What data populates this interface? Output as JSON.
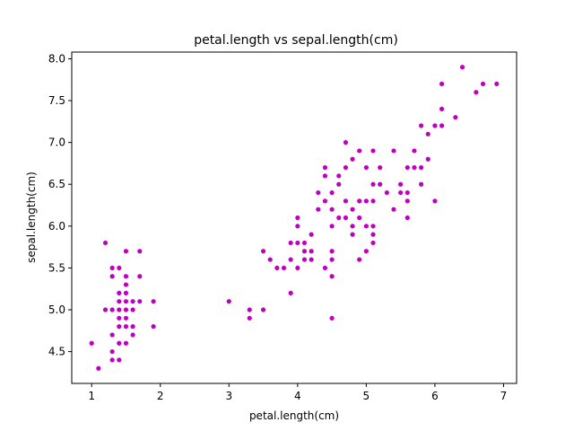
{
  "chart_data": {
    "type": "scatter",
    "title": "petal.length vs sepal.length(cm)",
    "xlabel": "petal.length(cm)",
    "ylabel": "sepal.length(cm)",
    "xlim": [
      0.71,
      7.19
    ],
    "ylim": [
      4.12,
      8.08
    ],
    "xticks": [
      1,
      2,
      3,
      4,
      5,
      6,
      7
    ],
    "xtick_labels": [
      "1",
      "2",
      "3",
      "4",
      "5",
      "6",
      "7"
    ],
    "yticks": [
      4.5,
      5.0,
      5.5,
      6.0,
      6.5,
      7.0,
      7.5,
      8.0
    ],
    "ytick_labels": [
      "4.5",
      "5.0",
      "5.5",
      "6.0",
      "6.5",
      "7.0",
      "7.5",
      "8.0"
    ],
    "grid": false,
    "marker_color": "#bf00bf",
    "series": [
      {
        "points": [
          [
            1.0,
            4.6
          ],
          [
            1.1,
            4.3
          ],
          [
            1.2,
            5.8
          ],
          [
            1.2,
            5.0
          ],
          [
            1.3,
            5.5
          ],
          [
            1.3,
            5.4
          ],
          [
            1.3,
            5.0
          ],
          [
            1.3,
            4.7
          ],
          [
            1.3,
            4.5
          ],
          [
            1.3,
            4.4
          ],
          [
            1.4,
            5.5
          ],
          [
            1.4,
            5.2
          ],
          [
            1.4,
            5.1
          ],
          [
            1.4,
            5.0
          ],
          [
            1.4,
            4.9
          ],
          [
            1.4,
            4.8
          ],
          [
            1.4,
            4.6
          ],
          [
            1.4,
            4.4
          ],
          [
            1.5,
            5.7
          ],
          [
            1.5,
            5.4
          ],
          [
            1.5,
            5.3
          ],
          [
            1.5,
            5.2
          ],
          [
            1.5,
            5.1
          ],
          [
            1.5,
            5.0
          ],
          [
            1.5,
            4.9
          ],
          [
            1.5,
            4.8
          ],
          [
            1.5,
            4.6
          ],
          [
            1.6,
            5.1
          ],
          [
            1.6,
            5.0
          ],
          [
            1.6,
            4.8
          ],
          [
            1.6,
            4.7
          ],
          [
            1.7,
            5.7
          ],
          [
            1.7,
            5.4
          ],
          [
            1.7,
            5.1
          ],
          [
            1.9,
            5.1
          ],
          [
            1.9,
            4.8
          ],
          [
            3.0,
            5.1
          ],
          [
            3.3,
            5.0
          ],
          [
            3.3,
            4.9
          ],
          [
            3.5,
            5.7
          ],
          [
            3.5,
            5.0
          ],
          [
            3.6,
            5.6
          ],
          [
            3.7,
            5.5
          ],
          [
            3.8,
            5.5
          ],
          [
            3.9,
            5.8
          ],
          [
            3.9,
            5.6
          ],
          [
            3.9,
            5.2
          ],
          [
            4.0,
            6.1
          ],
          [
            4.0,
            6.0
          ],
          [
            4.0,
            5.8
          ],
          [
            4.0,
            5.5
          ],
          [
            4.1,
            5.8
          ],
          [
            4.1,
            5.7
          ],
          [
            4.1,
            5.6
          ],
          [
            4.2,
            5.9
          ],
          [
            4.2,
            5.7
          ],
          [
            4.2,
            5.6
          ],
          [
            4.3,
            6.4
          ],
          [
            4.3,
            6.2
          ],
          [
            4.4,
            6.7
          ],
          [
            4.4,
            6.6
          ],
          [
            4.4,
            6.3
          ],
          [
            4.4,
            5.5
          ],
          [
            4.5,
            6.4
          ],
          [
            4.5,
            6.2
          ],
          [
            4.5,
            6.0
          ],
          [
            4.5,
            5.7
          ],
          [
            4.5,
            5.6
          ],
          [
            4.5,
            5.4
          ],
          [
            4.5,
            4.9
          ],
          [
            4.6,
            6.6
          ],
          [
            4.6,
            6.5
          ],
          [
            4.6,
            6.1
          ],
          [
            4.7,
            7.0
          ],
          [
            4.7,
            6.7
          ],
          [
            4.7,
            6.3
          ],
          [
            4.7,
            6.1
          ],
          [
            4.8,
            6.8
          ],
          [
            4.8,
            6.2
          ],
          [
            4.8,
            6.0
          ],
          [
            4.8,
            5.9
          ],
          [
            4.9,
            6.9
          ],
          [
            4.9,
            6.3
          ],
          [
            4.9,
            6.1
          ],
          [
            4.9,
            5.6
          ],
          [
            5.0,
            6.7
          ],
          [
            5.0,
            6.3
          ],
          [
            5.0,
            6.0
          ],
          [
            5.0,
            5.7
          ],
          [
            5.1,
            6.9
          ],
          [
            5.1,
            6.5
          ],
          [
            5.1,
            6.3
          ],
          [
            5.1,
            6.0
          ],
          [
            5.1,
            5.9
          ],
          [
            5.1,
            5.8
          ],
          [
            5.2,
            6.7
          ],
          [
            5.2,
            6.5
          ],
          [
            5.3,
            6.4
          ],
          [
            5.4,
            6.9
          ],
          [
            5.4,
            6.2
          ],
          [
            5.5,
            6.5
          ],
          [
            5.5,
            6.4
          ],
          [
            5.6,
            6.7
          ],
          [
            5.6,
            6.4
          ],
          [
            5.6,
            6.3
          ],
          [
            5.6,
            6.1
          ],
          [
            5.7,
            6.9
          ],
          [
            5.7,
            6.7
          ],
          [
            5.8,
            7.2
          ],
          [
            5.8,
            6.7
          ],
          [
            5.8,
            6.5
          ],
          [
            5.9,
            7.1
          ],
          [
            5.9,
            6.8
          ],
          [
            6.0,
            7.2
          ],
          [
            6.0,
            6.3
          ],
          [
            6.1,
            7.7
          ],
          [
            6.1,
            7.4
          ],
          [
            6.1,
            7.2
          ],
          [
            6.3,
            7.3
          ],
          [
            6.4,
            7.9
          ],
          [
            6.6,
            7.6
          ],
          [
            6.7,
            7.7
          ],
          [
            6.9,
            7.7
          ]
        ]
      }
    ]
  }
}
